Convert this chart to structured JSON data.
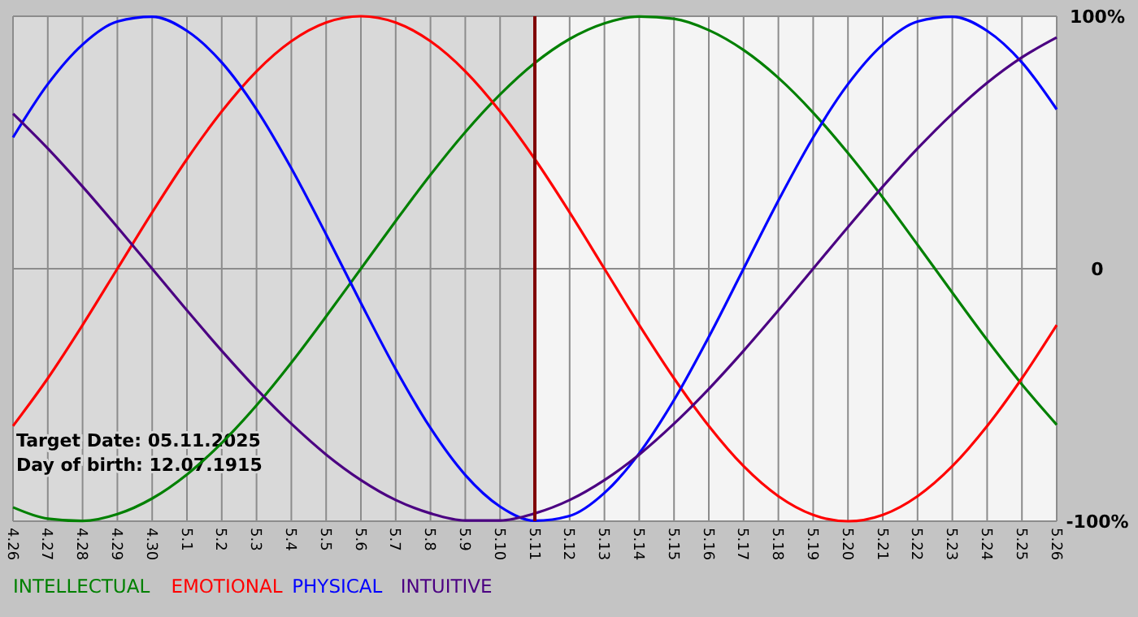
{
  "chart_data": {
    "type": "line",
    "categories": [
      "4.26",
      "4.27",
      "4.28",
      "4.29",
      "4.30",
      "5.1",
      "5.2",
      "5.3",
      "5.4",
      "5.5",
      "5.6",
      "5.7",
      "5.8",
      "5.9",
      "5.10",
      "5.11",
      "5.12",
      "5.13",
      "5.14",
      "5.15",
      "5.16",
      "5.17",
      "5.18",
      "5.19",
      "5.20",
      "5.21",
      "5.22",
      "5.23",
      "5.24",
      "5.25",
      "5.26"
    ],
    "series": [
      {
        "name": "INTELLECTUAL",
        "color": "#008000",
        "values": [
          -94.5,
          -99.0,
          -99.9,
          -97.2,
          -91.0,
          -81.5,
          -69.0,
          -54.1,
          -37.2,
          -18.9,
          0,
          18.9,
          37.2,
          54.1,
          69.0,
          81.5,
          91.0,
          97.2,
          99.9,
          99.0,
          94.5,
          86.6,
          75.6,
          61.8,
          45.8,
          28.2,
          9.5,
          -9.5,
          -28.2,
          -45.8,
          -61.8
        ]
      },
      {
        "name": "EMOTIONAL",
        "color": "#ff0000",
        "values": [
          -62.3,
          -43.4,
          -22.3,
          0,
          22.3,
          43.4,
          62.3,
          78.2,
          90.1,
          97.5,
          100,
          97.5,
          90.1,
          78.2,
          62.3,
          43.4,
          22.3,
          0,
          -22.3,
          -43.4,
          -62.3,
          -78.2,
          -90.1,
          -97.5,
          -100,
          -97.5,
          -90.1,
          -78.2,
          -62.3,
          -43.4,
          -22.3
        ]
      },
      {
        "name": "PHYSICAL",
        "color": "#0000ff",
        "values": [
          52.0,
          73.1,
          88.8,
          97.9,
          99.8,
          94.2,
          81.7,
          63.1,
          39.8,
          13.6,
          -13.6,
          -39.8,
          -63.1,
          -81.7,
          -94.2,
          -99.8,
          -97.9,
          -88.8,
          -73.1,
          -52.0,
          -27.0,
          0,
          27.0,
          52.0,
          73.1,
          88.8,
          97.9,
          99.8,
          94.2,
          81.7,
          63.1
        ]
      },
      {
        "name": "INTUITIVE",
        "color": "#4b0082",
        "values": [
          61.4,
          47.6,
          32.5,
          16.5,
          0,
          -16.5,
          -32.5,
          -47.6,
          -61.4,
          -73.6,
          -83.7,
          -91.6,
          -96.9,
          -99.7,
          -99.7,
          -96.9,
          -91.6,
          -83.7,
          -73.6,
          -61.4,
          -47.6,
          -32.5,
          -16.5,
          0,
          16.5,
          32.5,
          47.6,
          61.4,
          73.6,
          83.7,
          91.6
        ]
      }
    ],
    "ylim": [
      -100,
      100
    ],
    "yticks": [
      {
        "value": 100,
        "label": "100%"
      },
      0,
      {
        "value": -100,
        "label": "-100%"
      }
    ],
    "grid": true,
    "legend": "bottom",
    "bands": [
      {
        "axis": "x",
        "from": "4.26",
        "to": "5.11",
        "color": "#d9d9d9"
      }
    ],
    "ref_lines": [
      {
        "axis": "x",
        "value": "5.11",
        "color": "#800000"
      }
    ],
    "annotations": [
      "Target Date: 05.11.2025",
      "Day of birth: 12.07.1915"
    ]
  }
}
